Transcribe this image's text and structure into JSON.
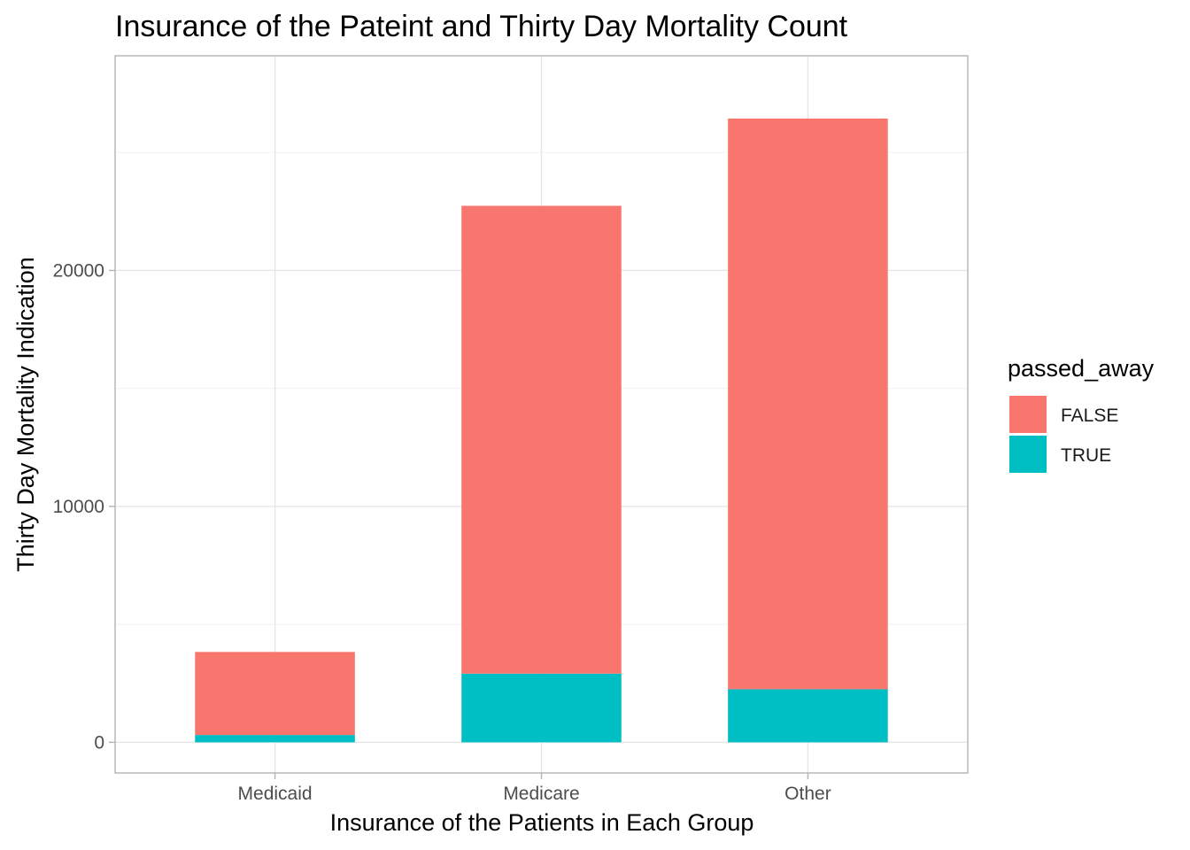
{
  "chart_data": {
    "type": "bar",
    "stacked": true,
    "title": "Insurance of the Pateint and Thirty Day Mortality Count",
    "xlabel": "Insurance of the Patients in Each Group",
    "ylabel": "Thirty Day Mortality Indication",
    "categories": [
      "Medicaid",
      "Medicare",
      "Other"
    ],
    "series": [
      {
        "name": "FALSE",
        "color": "#F8766D",
        "values": [
          3520,
          19830,
          24190
        ]
      },
      {
        "name": "TRUE",
        "color": "#00BFC4",
        "values": [
          310,
          2910,
          2250
        ]
      }
    ],
    "ylim": [
      -1300,
      29100
    ],
    "yticks": [
      0,
      10000,
      20000
    ],
    "grid": true,
    "legend": {
      "title": "passed_away",
      "position": "right"
    }
  }
}
